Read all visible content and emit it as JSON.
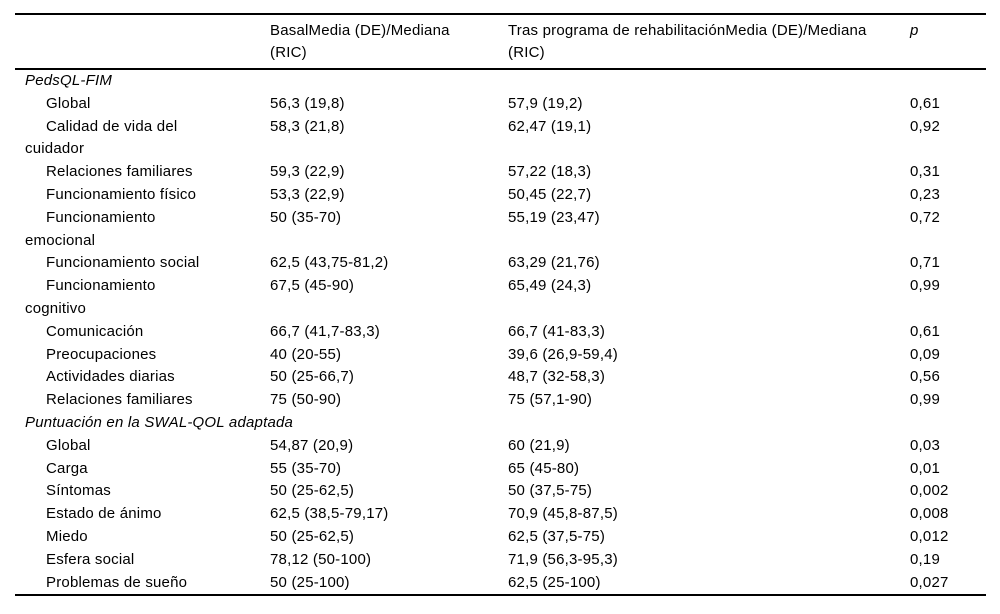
{
  "table": {
    "headers": {
      "row_label": "",
      "basal": "BasalMedia (DE)/Mediana\n(RIC)",
      "post": "Tras programa de rehabilitaciónMedia (DE)/Mediana\n(RIC)",
      "p": "p"
    },
    "rows": [
      {
        "type": "section",
        "label": "PedsQL-FIM"
      },
      {
        "type": "item",
        "label": "Global",
        "basal": "56,3 (19,8)",
        "post": "57,9 (19,2)",
        "p": "0,61"
      },
      {
        "type": "item",
        "label": "Calidad de vida del\ncuidador",
        "basal": "58,3 (21,8)",
        "post": "62,47 (19,1)",
        "p": "0,92"
      },
      {
        "type": "item",
        "label": "Relaciones familiares",
        "basal": "59,3 (22,9)",
        "post": "57,22 (18,3)",
        "p": "0,31"
      },
      {
        "type": "item",
        "label": "Funcionamiento físico",
        "basal": "53,3 (22,9)",
        "post": "50,45 (22,7)",
        "p": "0,23"
      },
      {
        "type": "item",
        "label": "Funcionamiento\nemocional",
        "basal": "50 (35-70)",
        "post": "55,19 (23,47)",
        "p": "0,72"
      },
      {
        "type": "item",
        "label": "Funcionamiento social",
        "basal": "62,5 (43,75-81,2)",
        "post": "63,29 (21,76)",
        "p": "0,71"
      },
      {
        "type": "item",
        "label": "Funcionamiento\ncognitivo",
        "basal": "67,5 (45-90)",
        "post": "65,49 (24,3)",
        "p": "0,99"
      },
      {
        "type": "item",
        "label": "Comunicación",
        "basal": "66,7 (41,7-83,3)",
        "post": "66,7 (41-83,3)",
        "p": "0,61"
      },
      {
        "type": "item",
        "label": "Preocupaciones",
        "basal": "40 (20-55)",
        "post": "39,6 (26,9-59,4)",
        "p": "0,09"
      },
      {
        "type": "item",
        "label": "Actividades diarias",
        "basal": "50 (25-66,7)",
        "post": "48,7 (32-58,3)",
        "p": "0,56"
      },
      {
        "type": "item",
        "label": "Relaciones familiares",
        "basal": "75 (50-90)",
        "post": "75 (57,1-90)",
        "p": "0,99"
      },
      {
        "type": "section",
        "label": "Puntuación en la SWAL-QOL adaptada"
      },
      {
        "type": "item",
        "label": "Global",
        "basal": "54,87 (20,9)",
        "post": "60 (21,9)",
        "p": "0,03"
      },
      {
        "type": "item",
        "label": "Carga",
        "basal": "55 (35-70)",
        "post": "65 (45-80)",
        "p": "0,01"
      },
      {
        "type": "item",
        "label": "Síntomas",
        "basal": "50 (25-62,5)",
        "post": "50 (37,5-75)",
        "p": "0,002"
      },
      {
        "type": "item",
        "label": "Estado de ánimo",
        "basal": "62,5 (38,5-79,17)",
        "post": "70,9 (45,8-87,5)",
        "p": "0,008"
      },
      {
        "type": "item",
        "label": "Miedo",
        "basal": "50 (25-62,5)",
        "post": "62,5 (37,5-75)",
        "p": "0,012"
      },
      {
        "type": "item",
        "label": "Esfera social",
        "basal": "78,12 (50-100)",
        "post": "71,9 (56,3-95,3)",
        "p": "0,19"
      },
      {
        "type": "item",
        "label": "Problemas de sueño",
        "basal": "50 (25-100)",
        "post": "62,5 (25-100)",
        "p": "0,027"
      }
    ]
  }
}
